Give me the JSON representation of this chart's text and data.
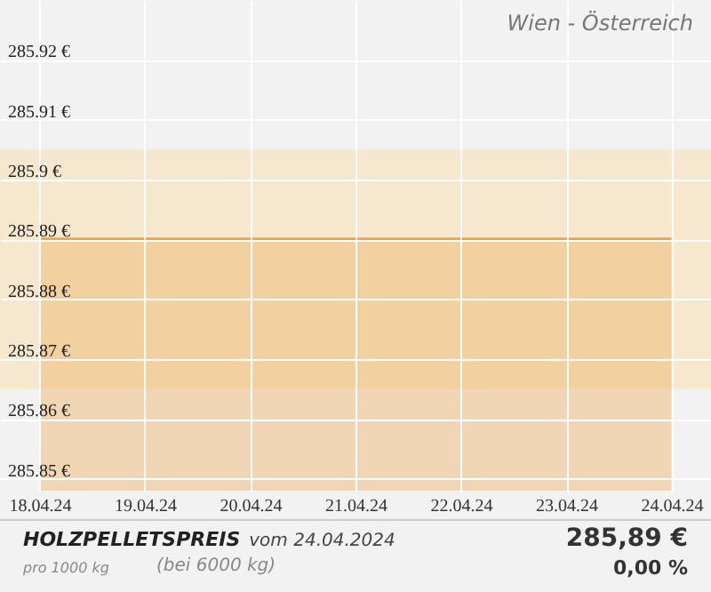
{
  "chart_data": {
    "type": "area",
    "title": "HOLZPELLETSPREIS",
    "annotations": [
      "Wien - Österreich",
      "vom 24.04.2024",
      "pro 1000 kg",
      "(bei 6000 kg)",
      "285,89 €",
      "0,00 %"
    ],
    "x": [
      "2024-04-18",
      "2024-04-19",
      "2024-04-20",
      "2024-04-21",
      "2024-04-22",
      "2024-04-23",
      "2024-04-24"
    ],
    "series": [
      {
        "color": "#f0a448",
        "values": [
          285.89,
          285.89,
          285.89,
          285.89,
          285.89,
          285.89,
          285.89
        ]
      }
    ],
    "xlim": [
      "2024-04-17T15:00",
      "2024-04-24T09:00"
    ],
    "xticks": [
      {
        "value": "2024-04-18",
        "label": "18.04.24"
      },
      {
        "value": "2024-04-19",
        "label": "19.04.24"
      },
      {
        "value": "2024-04-20",
        "label": "20.04.24"
      },
      {
        "value": "2024-04-21",
        "label": "21.04.24"
      },
      {
        "value": "2024-04-22",
        "label": "22.04.24"
      },
      {
        "value": "2024-04-23",
        "label": "23.04.24"
      },
      {
        "value": "2024-04-24",
        "label": "24.04.24"
      }
    ],
    "ylim": [
      285.848,
      285.93
    ],
    "yticks": [
      {
        "value": 285.85,
        "label": "285.85 €"
      },
      {
        "value": 285.86,
        "label": "285.86 €"
      },
      {
        "value": 285.87,
        "label": "285.87 €"
      },
      {
        "value": 285.88,
        "label": "285.88 €"
      },
      {
        "value": 285.89,
        "label": "285.89 €"
      },
      {
        "value": 285.9,
        "label": "285.9 €"
      },
      {
        "value": 285.91,
        "label": "285.91 €"
      },
      {
        "value": 285.92,
        "label": "285.92 €"
      }
    ],
    "bands": [
      {
        "axis": "y",
        "from": 285.865,
        "to": 285.905,
        "color": "#f5e8cf"
      }
    ],
    "grid": true
  }
}
